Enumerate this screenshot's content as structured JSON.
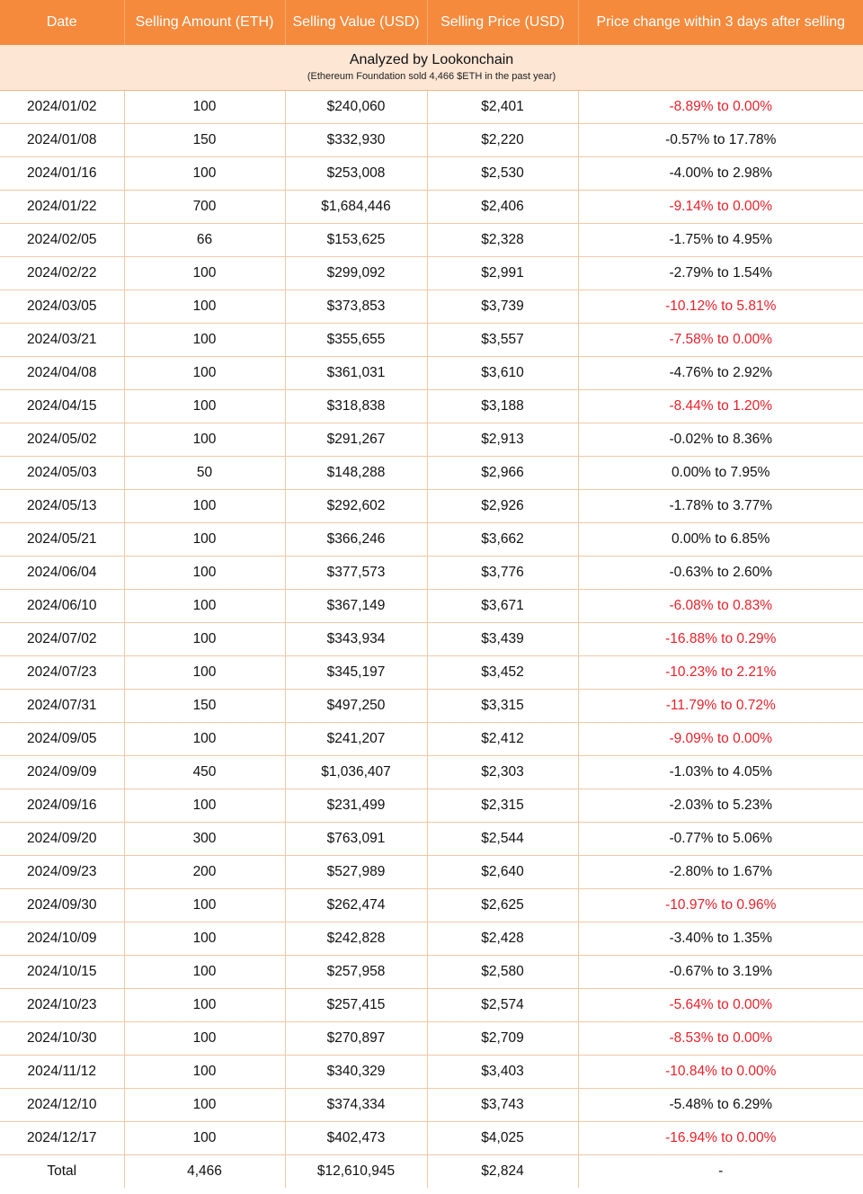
{
  "headers": [
    "Date",
    "Selling Amount (ETH)",
    "Selling Value (USD)",
    "Selling Price (USD)",
    "Price change within 3 days after selling"
  ],
  "banner": {
    "title": "Analyzed by Lookonchain",
    "subtitle": "(Ethereum Foundation sold 4,466 $ETH in the past year)"
  },
  "rows": [
    {
      "date": "2024/01/02",
      "amount": "100",
      "value": "$240,060",
      "price": "$2,401",
      "change": "-8.89% to 0.00%",
      "highlight": true
    },
    {
      "date": "2024/01/08",
      "amount": "150",
      "value": "$332,930",
      "price": "$2,220",
      "change": "-0.57% to 17.78%",
      "highlight": false
    },
    {
      "date": "2024/01/16",
      "amount": "100",
      "value": "$253,008",
      "price": "$2,530",
      "change": "-4.00% to 2.98%",
      "highlight": false
    },
    {
      "date": "2024/01/22",
      "amount": "700",
      "value": "$1,684,446",
      "price": "$2,406",
      "change": "-9.14% to 0.00%",
      "highlight": true
    },
    {
      "date": "2024/02/05",
      "amount": "66",
      "value": "$153,625",
      "price": "$2,328",
      "change": "-1.75% to 4.95%",
      "highlight": false
    },
    {
      "date": "2024/02/22",
      "amount": "100",
      "value": "$299,092",
      "price": "$2,991",
      "change": "-2.79% to 1.54%",
      "highlight": false
    },
    {
      "date": "2024/03/05",
      "amount": "100",
      "value": "$373,853",
      "price": "$3,739",
      "change": "-10.12% to 5.81%",
      "highlight": true
    },
    {
      "date": "2024/03/21",
      "amount": "100",
      "value": "$355,655",
      "price": "$3,557",
      "change": "-7.58% to 0.00%",
      "highlight": true
    },
    {
      "date": "2024/04/08",
      "amount": "100",
      "value": "$361,031",
      "price": "$3,610",
      "change": "-4.76% to 2.92%",
      "highlight": false
    },
    {
      "date": "2024/04/15",
      "amount": "100",
      "value": "$318,838",
      "price": "$3,188",
      "change": "-8.44% to 1.20%",
      "highlight": true
    },
    {
      "date": "2024/05/02",
      "amount": "100",
      "value": "$291,267",
      "price": "$2,913",
      "change": "-0.02% to 8.36%",
      "highlight": false
    },
    {
      "date": "2024/05/03",
      "amount": "50",
      "value": "$148,288",
      "price": "$2,966",
      "change": "0.00% to 7.95%",
      "highlight": false
    },
    {
      "date": "2024/05/13",
      "amount": "100",
      "value": "$292,602",
      "price": "$2,926",
      "change": "-1.78% to 3.77%",
      "highlight": false
    },
    {
      "date": "2024/05/21",
      "amount": "100",
      "value": "$366,246",
      "price": "$3,662",
      "change": "0.00% to 6.85%",
      "highlight": false
    },
    {
      "date": "2024/06/04",
      "amount": "100",
      "value": "$377,573",
      "price": "$3,776",
      "change": "-0.63% to 2.60%",
      "highlight": false
    },
    {
      "date": "2024/06/10",
      "amount": "100",
      "value": "$367,149",
      "price": "$3,671",
      "change": "-6.08% to 0.83%",
      "highlight": true
    },
    {
      "date": "2024/07/02",
      "amount": "100",
      "value": "$343,934",
      "price": "$3,439",
      "change": "-16.88% to 0.29%",
      "highlight": true
    },
    {
      "date": "2024/07/23",
      "amount": "100",
      "value": "$345,197",
      "price": "$3,452",
      "change": "-10.23% to 2.21%",
      "highlight": true
    },
    {
      "date": "2024/07/31",
      "amount": "150",
      "value": "$497,250",
      "price": "$3,315",
      "change": "-11.79% to 0.72%",
      "highlight": true
    },
    {
      "date": "2024/09/05",
      "amount": "100",
      "value": "$241,207",
      "price": "$2,412",
      "change": "-9.09% to 0.00%",
      "highlight": true
    },
    {
      "date": "2024/09/09",
      "amount": "450",
      "value": "$1,036,407",
      "price": "$2,303",
      "change": "-1.03% to 4.05%",
      "highlight": false
    },
    {
      "date": "2024/09/16",
      "amount": "100",
      "value": "$231,499",
      "price": "$2,315",
      "change": "-2.03% to 5.23%",
      "highlight": false
    },
    {
      "date": "2024/09/20",
      "amount": "300",
      "value": "$763,091",
      "price": "$2,544",
      "change": "-0.77% to 5.06%",
      "highlight": false
    },
    {
      "date": "2024/09/23",
      "amount": "200",
      "value": "$527,989",
      "price": "$2,640",
      "change": "-2.80% to 1.67%",
      "highlight": false
    },
    {
      "date": "2024/09/30",
      "amount": "100",
      "value": "$262,474",
      "price": "$2,625",
      "change": "-10.97% to 0.96%",
      "highlight": true
    },
    {
      "date": "2024/10/09",
      "amount": "100",
      "value": "$242,828",
      "price": "$2,428",
      "change": "-3.40% to 1.35%",
      "highlight": false
    },
    {
      "date": "2024/10/15",
      "amount": "100",
      "value": "$257,958",
      "price": "$2,580",
      "change": "-0.67% to 3.19%",
      "highlight": false
    },
    {
      "date": "2024/10/23",
      "amount": "100",
      "value": "$257,415",
      "price": "$2,574",
      "change": "-5.64% to 0.00%",
      "highlight": true
    },
    {
      "date": "2024/10/30",
      "amount": "100",
      "value": "$270,897",
      "price": "$2,709",
      "change": "-8.53% to 0.00%",
      "highlight": true
    },
    {
      "date": "2024/11/12",
      "amount": "100",
      "value": "$340,329",
      "price": "$3,403",
      "change": "-10.84% to 0.00%",
      "highlight": true
    },
    {
      "date": "2024/12/10",
      "amount": "100",
      "value": "$374,334",
      "price": "$3,743",
      "change": "-5.48% to 6.29%",
      "highlight": false
    },
    {
      "date": "2024/12/17",
      "amount": "100",
      "value": "$402,473",
      "price": "$4,025",
      "change": "-16.94% to 0.00%",
      "highlight": true
    }
  ],
  "total": {
    "label": "Total",
    "amount": "4,466",
    "value": "$12,610,945",
    "price": "$2,824",
    "change": "-"
  },
  "colors": {
    "header_bg": "#f58a3c",
    "banner_bg": "#fde6d4",
    "negative_text": "#e8212a"
  }
}
